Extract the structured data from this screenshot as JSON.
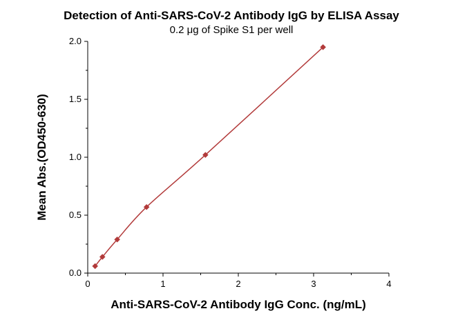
{
  "chart_data": {
    "type": "scatter",
    "title": "Detection of Anti-SARS-CoV-2 Antibody IgG by ELISA Assay",
    "subtitle": "0.2 μg of Spike S1 per well",
    "xlabel": "Anti-SARS-CoV-2 Antibody IgG Conc. (ng/mL)",
    "ylabel": "Mean Abs.(OD450-630)",
    "xlim": [
      0,
      4
    ],
    "ylim": [
      0,
      2
    ],
    "x_ticks": [
      0,
      1,
      2,
      3,
      4
    ],
    "y_ticks": [
      "0.0",
      "0.5",
      "1.0",
      "1.5",
      "2.0"
    ],
    "grid": false,
    "fit_curve": true,
    "series_color": "#b23a3a",
    "series": [
      {
        "x": [
          0.098,
          0.195,
          0.391,
          0.781,
          1.563,
          3.125
        ],
        "y": [
          0.06,
          0.14,
          0.29,
          0.57,
          1.02,
          1.95
        ]
      }
    ]
  }
}
